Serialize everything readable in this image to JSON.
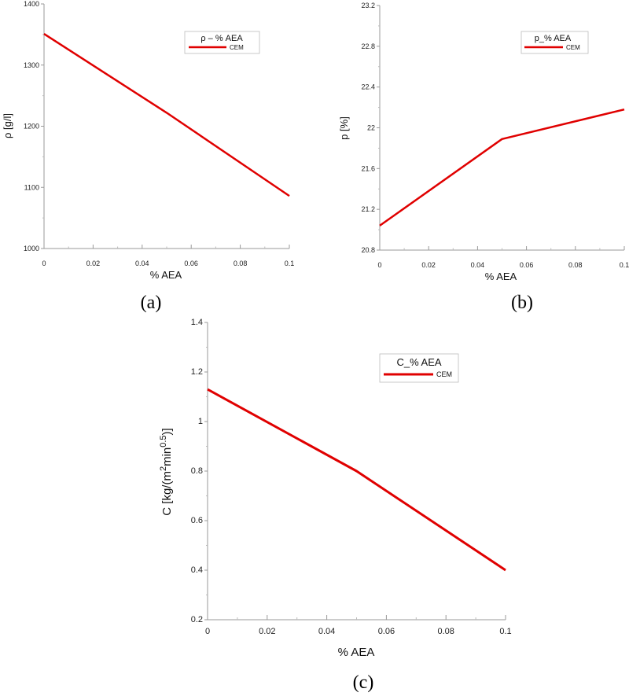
{
  "chart_data": [
    {
      "type": "line",
      "panel_label": "(a)",
      "legend_title": "ρ – % AEA",
      "xlabel": "% AEA",
      "ylabel": "ρ [g/l]",
      "xlim": [
        0,
        0.1
      ],
      "ylim": [
        1000,
        1400
      ],
      "x_ticks": [
        "0",
        "0.02",
        "0.04",
        "0.06",
        "0.08",
        "0.1"
      ],
      "y_ticks": [
        "1000",
        "1100",
        "1200",
        "1300",
        "1400"
      ],
      "series": [
        {
          "name": "CEM",
          "color": "#e00000",
          "x": [
            0,
            0.05,
            0.1
          ],
          "y": [
            1351,
            1222,
            1086
          ]
        }
      ]
    },
    {
      "type": "line",
      "panel_label": "(b)",
      "legend_title": "p_% AEA",
      "xlabel": "% AEA",
      "ylabel": "p [%]",
      "xlim": [
        0,
        0.1
      ],
      "ylim": [
        20.8,
        23.2
      ],
      "x_ticks": [
        "0",
        "0.02",
        "0.04",
        "0.06",
        "0.08",
        "0.1"
      ],
      "y_ticks": [
        "20.8",
        "21.2",
        "21.6",
        "22",
        "22.4",
        "22.8",
        "23.2"
      ],
      "series": [
        {
          "name": "CEM",
          "color": "#e00000",
          "x": [
            0,
            0.05,
            0.1
          ],
          "y": [
            21.04,
            21.89,
            22.18
          ]
        }
      ]
    },
    {
      "type": "line",
      "panel_label": "(c)",
      "legend_title": "C_% AEA",
      "xlabel": "% AEA",
      "ylabel_parts": [
        "C [kg/(m",
        "2",
        "min",
        "0.5",
        ")]"
      ],
      "xlim": [
        0,
        0.1
      ],
      "ylim": [
        0.2,
        1.4
      ],
      "x_ticks": [
        "0",
        "0.02",
        "0.04",
        "0.06",
        "0.08",
        "0.1"
      ],
      "y_ticks": [
        "0.2",
        "0.4",
        "0.6",
        "0.8",
        "1",
        "1.2",
        "1.4"
      ],
      "series": [
        {
          "name": "CEM",
          "color": "#e00000",
          "x": [
            0,
            0.05,
            0.1
          ],
          "y": [
            1.13,
            0.8,
            0.4
          ]
        }
      ]
    }
  ]
}
